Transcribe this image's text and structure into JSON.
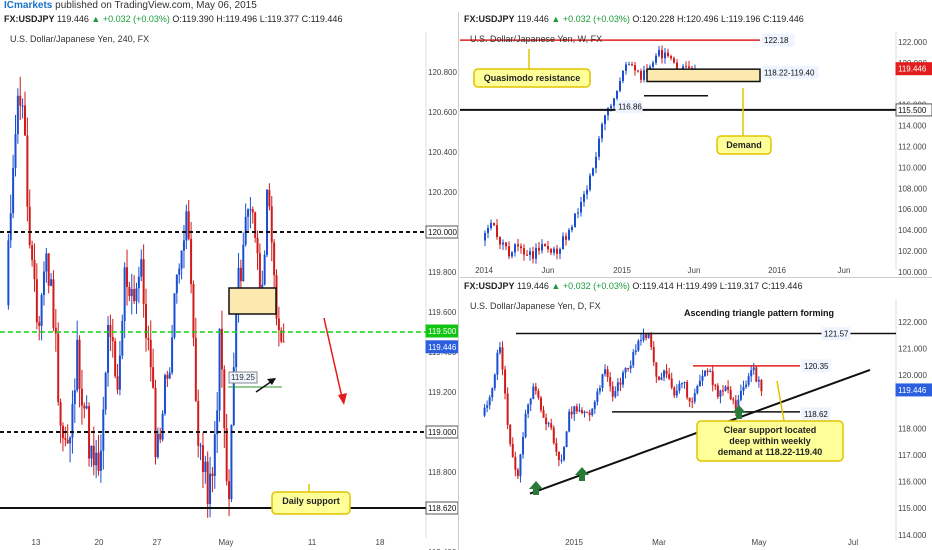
{
  "header": {
    "brand": "ICmarkets",
    "text": " published on TradingView.com, May 06, 2015"
  },
  "colors": {
    "up": "#1a4fd1",
    "down": "#d11a1a",
    "green_line": "#12d312",
    "note_fill": "#ffff9a",
    "note_border": "#e0c400",
    "zone_fill": "#fbe9b0",
    "price_tag": "#2b5fe0",
    "red_tag": "#e21d1d"
  },
  "left": {
    "hdr_sym": "FX:USDJPY",
    "hdr_price": "119.446",
    "hdr_change": "▲ +0.032 (+0.03%)",
    "hdr_o": "O:119.390",
    "hdr_h": "H:119.496",
    "hdr_l": "L:119.377",
    "hdr_c": "C:119.446",
    "title": "U.S. Dollar/Japanese Yen, 240, FX",
    "yticks": [
      "120.800",
      "120.600",
      "120.400",
      "120.200",
      "119.800",
      "119.600",
      "119.400",
      "119.200",
      "118.800",
      "118.400"
    ],
    "xticks": [
      "13",
      "20",
      "27",
      "May",
      "11",
      "18"
    ],
    "tag_120": "120.000",
    "tag_119500": "119.500",
    "tag_price": "119.446",
    "tag_119": "119.000",
    "tag_118620": "118.620",
    "label_11925": "119.25",
    "note_daily": "Daily support"
  },
  "weekly": {
    "hdr_sym": "FX:USDJPY",
    "hdr_price": "119.446",
    "hdr_change": "▲ +0.032 (+0.03%)",
    "hdr_o": "O:120.228",
    "hdr_h": "H:120.496",
    "hdr_l": "L:119.196",
    "hdr_c": "C:119.446",
    "title": "U.S. Dollar/Japanese Yen, W, FX",
    "yticks": [
      "122.000",
      "120.000",
      "116.000",
      "114.000",
      "112.000",
      "110.000",
      "108.000",
      "106.000",
      "104.000",
      "102.000",
      "100.000"
    ],
    "xticks": [
      "2014",
      "Jun",
      "2015",
      "Jun",
      "2016",
      "Jun"
    ],
    "tag_12218": "122.18",
    "tag_price": "119.446",
    "tag_zone": "118.22-119.40",
    "tag_11686": "116.86",
    "tag_115500": "115.500",
    "note_qm": "Quasimodo resistance",
    "note_demand": "Demand"
  },
  "daily": {
    "hdr_sym": "FX:USDJPY",
    "hdr_price": "119.446",
    "hdr_change": "▲ +0.032 (+0.03%)",
    "hdr_o": "O:119.414",
    "hdr_h": "H:119.499",
    "hdr_l": "L:119.317",
    "hdr_c": "C:119.446",
    "title": "U.S. Dollar/Japanese Yen, D, FX",
    "yticks": [
      "122.000",
      "121.000",
      "120.000",
      "118.000",
      "117.000",
      "116.000",
      "115.000",
      "114.000"
    ],
    "xticks": [
      "2015",
      "Mar",
      "May",
      "Jul"
    ],
    "tag_12157": "121.57",
    "tag_12035": "120.35",
    "tag_price": "119.446",
    "tag_11862": "118.62",
    "note_triangle": "Ascending triangle pattern forming",
    "note_support_1": "Clear support located",
    "note_support_2": "deep within weekly",
    "note_support_3": "demand at 118.22-119.40"
  },
  "chart_data": [
    {
      "type": "candlestick",
      "timeframe": "240",
      "title": "U.S. Dollar/Japanese Yen, 240, FX",
      "ylim": [
        118.3,
        121.0
      ],
      "horizontal_levels": [
        120.0,
        119.5,
        119.0,
        118.62
      ],
      "annotated_level": 119.25,
      "last": 119.446
    },
    {
      "type": "candlestick",
      "timeframe": "W",
      "title": "U.S. Dollar/Japanese Yen, W, FX",
      "ylim": [
        99.5,
        123.0
      ],
      "horizontal_levels": [
        122.18,
        115.5,
        116.86
      ],
      "zone": [
        118.22,
        119.4
      ],
      "last": 119.446
    },
    {
      "type": "candlestick",
      "timeframe": "D",
      "title": "U.S. Dollar/Japanese Yen, D, FX",
      "ylim": [
        113.6,
        122.5
      ],
      "horizontal_levels": [
        121.57,
        120.35,
        118.62
      ],
      "last": 119.446
    }
  ]
}
